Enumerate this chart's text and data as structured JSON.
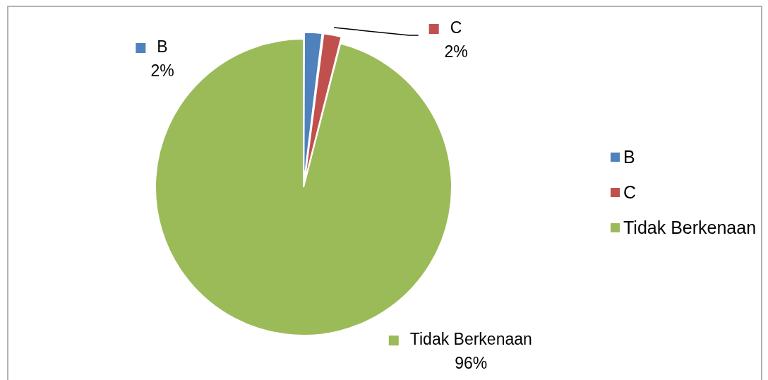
{
  "chart_data": {
    "type": "pie",
    "categories": [
      "B",
      "C",
      "Tidak Berkenaan"
    ],
    "values": [
      2,
      2,
      96
    ],
    "colors": [
      "#4f81bd",
      "#c0504d",
      "#9bbb59"
    ],
    "value_labels": [
      "2%",
      "2%",
      "96%"
    ],
    "legend": "right"
  }
}
